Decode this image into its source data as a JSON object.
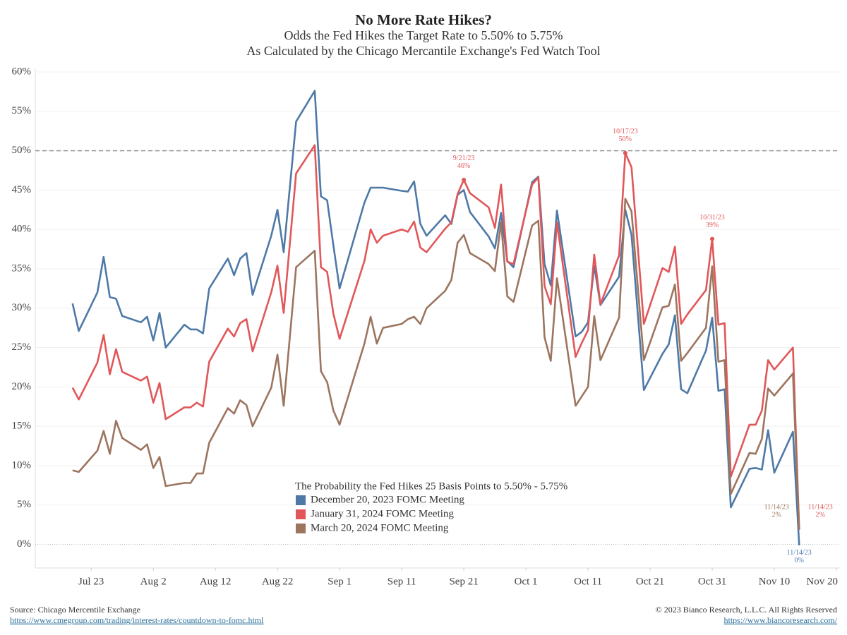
{
  "chart_data": {
    "type": "line",
    "title": "No More Rate Hikes?",
    "subtitle": [
      "Odds the Fed Hikes the Target Rate to 5.50% to 5.75%",
      "As Calculated by the Chicago Mercantile Exchange's Fed Watch Tool"
    ],
    "legend_title": "The Probability the Fed Hikes 25 Basis Points to 5.50% - 5.75%",
    "x": [
      "2023-07-20",
      "2023-07-21",
      "2023-07-24",
      "2023-07-25",
      "2023-07-26",
      "2023-07-27",
      "2023-07-28",
      "2023-07-31",
      "2023-08-01",
      "2023-08-02",
      "2023-08-03",
      "2023-08-04",
      "2023-08-07",
      "2023-08-08",
      "2023-08-09",
      "2023-08-10",
      "2023-08-11",
      "2023-08-14",
      "2023-08-15",
      "2023-08-16",
      "2023-08-17",
      "2023-08-18",
      "2023-08-21",
      "2023-08-22",
      "2023-08-23",
      "2023-08-25",
      "2023-08-28",
      "2023-08-29",
      "2023-08-30",
      "2023-08-31",
      "2023-09-01",
      "2023-09-05",
      "2023-09-06",
      "2023-09-07",
      "2023-09-08",
      "2023-09-11",
      "2023-09-12",
      "2023-09-13",
      "2023-09-14",
      "2023-09-15",
      "2023-09-18",
      "2023-09-19",
      "2023-09-20",
      "2023-09-21",
      "2023-09-22",
      "2023-09-25",
      "2023-09-26",
      "2023-09-27",
      "2023-09-28",
      "2023-09-29",
      "2023-10-02",
      "2023-10-03",
      "2023-10-04",
      "2023-10-05",
      "2023-10-06",
      "2023-10-09",
      "2023-10-10",
      "2023-10-11",
      "2023-10-12",
      "2023-10-13",
      "2023-10-16",
      "2023-10-17",
      "2023-10-18",
      "2023-10-20",
      "2023-10-23",
      "2023-10-24",
      "2023-10-25",
      "2023-10-26",
      "2023-10-27",
      "2023-10-30",
      "2023-10-31",
      "2023-11-01",
      "2023-11-02",
      "2023-11-03",
      "2023-11-06",
      "2023-11-07",
      "2023-11-08",
      "2023-11-09",
      "2023-11-10",
      "2023-11-13",
      "2023-11-14"
    ],
    "series": [
      {
        "name": "December 20, 2023 FOMC Meeting",
        "color": "#4e79a7",
        "values": [
          30.6,
          27.1,
          32.0,
          36.5,
          31.4,
          31.2,
          29.0,
          28.2,
          28.9,
          25.9,
          29.4,
          25.0,
          27.9,
          27.3,
          27.3,
          26.8,
          32.5,
          36.3,
          34.2,
          36.3,
          37.0,
          31.7,
          39.2,
          42.5,
          37.1,
          53.7,
          57.6,
          44.2,
          43.7,
          38.0,
          32.5,
          43.4,
          45.3,
          45.3,
          45.3,
          44.9,
          44.8,
          46.1,
          40.7,
          39.2,
          41.8,
          40.7,
          44.4,
          45.0,
          42.2,
          39.1,
          37.6,
          42.1,
          36.0,
          35.2,
          46.0,
          46.7,
          35.6,
          32.9,
          42.4,
          26.4,
          27.0,
          28.2,
          35.4,
          30.4,
          34.0,
          42.5,
          39.3,
          19.6,
          24.2,
          25.4,
          29.1,
          19.7,
          19.2,
          24.6,
          28.8,
          19.5,
          19.7,
          4.7,
          9.6,
          9.7,
          9.5,
          14.5,
          9.1,
          14.3,
          0
        ],
        "annotations": [
          {
            "date": "11/14/23",
            "label": "0%"
          }
        ]
      },
      {
        "name": "January 31, 2024 FOMC Meeting",
        "color": "#e15759",
        "values": [
          19.9,
          18.4,
          23.1,
          26.6,
          21.6,
          24.8,
          21.9,
          20.8,
          21.3,
          18.0,
          20.5,
          15.9,
          17.4,
          17.4,
          18.0,
          17.5,
          23.2,
          27.4,
          26.4,
          28.1,
          28.6,
          24.5,
          32.0,
          35.4,
          29.4,
          47.1,
          50.7,
          35.2,
          34.6,
          29.3,
          26.1,
          36.0,
          40.0,
          38.3,
          39.2,
          40.0,
          39.7,
          41.0,
          37.7,
          37.1,
          40.1,
          40.9,
          44.5,
          46.3,
          44.6,
          42.8,
          40.2,
          45.7,
          35.9,
          35.6,
          45.7,
          46.6,
          32.8,
          30.5,
          40.9,
          23.8,
          25.6,
          27.2,
          36.8,
          30.5,
          36.7,
          49.7,
          47.9,
          28.0,
          35.1,
          34.6,
          37.8,
          28.0,
          29.2,
          32.3,
          38.8,
          27.9,
          28.1,
          8.6,
          15.2,
          15.2,
          17.0,
          23.4,
          22.2,
          25.0,
          2
        ],
        "annotations": [
          {
            "date": "9/21/23",
            "label": "46%"
          },
          {
            "date": "10/17/23",
            "label": "50%"
          },
          {
            "date": "10/31/23",
            "label": "39%"
          },
          {
            "date": "11/14/23",
            "label": "2%"
          }
        ]
      },
      {
        "name": "March 20, 2024 FOMC Meeting",
        "color": "#9c755f",
        "values": [
          9.4,
          9.2,
          11.9,
          14.4,
          11.5,
          15.7,
          13.5,
          12.0,
          12.7,
          9.7,
          11.1,
          7.4,
          7.8,
          7.8,
          9.0,
          9.0,
          12.9,
          17.3,
          16.6,
          18.3,
          17.7,
          15.0,
          19.9,
          24.1,
          17.6,
          35.2,
          37.3,
          22.0,
          20.6,
          17.0,
          15.2,
          25.5,
          28.9,
          25.5,
          27.5,
          28.0,
          28.6,
          28.9,
          28.0,
          30.0,
          32.2,
          33.6,
          38.3,
          39.3,
          37.0,
          35.6,
          34.7,
          40.9,
          31.5,
          30.8,
          40.5,
          41.1,
          26.3,
          23.3,
          33.8,
          17.6,
          18.8,
          20.0,
          29.0,
          23.4,
          28.8,
          43.9,
          42.3,
          23.4,
          30.1,
          30.3,
          33.0,
          23.3,
          24.3,
          27.5,
          35.3,
          23.2,
          23.4,
          6.4,
          11.6,
          11.5,
          13.4,
          19.8,
          18.9,
          21.7,
          2
        ],
        "annotations": [
          {
            "date": "11/14/23",
            "label": "2%"
          }
        ]
      }
    ],
    "xlim": [
      "2023-07-14",
      "2023-11-20"
    ],
    "xticks": [
      {
        "value": "2023-07-23",
        "label": "Jul 23"
      },
      {
        "value": "2023-08-02",
        "label": "Aug 2"
      },
      {
        "value": "2023-08-12",
        "label": "Aug 12"
      },
      {
        "value": "2023-08-22",
        "label": "Aug 22"
      },
      {
        "value": "2023-09-01",
        "label": "Sep 1"
      },
      {
        "value": "2023-09-11",
        "label": "Sep 11"
      },
      {
        "value": "2023-09-21",
        "label": "Sep 21"
      },
      {
        "value": "2023-10-01",
        "label": "Oct 1"
      },
      {
        "value": "2023-10-11",
        "label": "Oct 11"
      },
      {
        "value": "2023-10-21",
        "label": "Oct 21"
      },
      {
        "value": "2023-10-31",
        "label": "Oct 31"
      },
      {
        "value": "2023-11-10",
        "label": "Nov 10"
      },
      {
        "value": "2023-11-20",
        "label": "Nov 20"
      }
    ],
    "ylim": [
      -3,
      60
    ],
    "yticks": [
      {
        "value": 0,
        "label": "0%"
      },
      {
        "value": 5,
        "label": "5%"
      },
      {
        "value": 10,
        "label": "10%"
      },
      {
        "value": 15,
        "label": "15%"
      },
      {
        "value": 20,
        "label": "20%"
      },
      {
        "value": 25,
        "label": "25%"
      },
      {
        "value": 30,
        "label": "30%"
      },
      {
        "value": 35,
        "label": "35%"
      },
      {
        "value": 40,
        "label": "40%"
      },
      {
        "value": 45,
        "label": "45%"
      },
      {
        "value": 50,
        "label": "50%"
      },
      {
        "value": 55,
        "label": "55%"
      },
      {
        "value": 60,
        "label": "60%"
      }
    ],
    "reference_line": 50,
    "grid": true,
    "footer": {
      "source": "Source: Chicago Mercentile Exchange",
      "source_link": "https://www.cmegroup.com/trading/interest-rates/countdown-to-fomc.html",
      "copyright": "© 2023 Bianco Research, L.L.C. All Rights Reserved",
      "site_link": "https://www.biancoresearch.com/"
    }
  }
}
